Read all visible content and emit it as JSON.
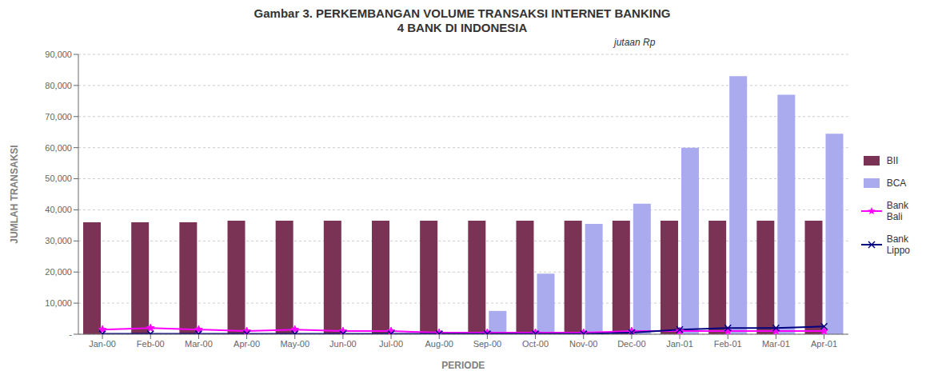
{
  "chart_data": {
    "type": "bar",
    "title": "Gambar 3. PERKEMBANGAN VOLUME TRANSAKSI INTERNET BANKING\n4 BANK DI INDONESIA",
    "subtitle": "jutaan Rp",
    "xlabel": "PERIODE",
    "ylabel": "JUMLAH TRANSAKSI",
    "categories": [
      "Jan-00",
      "Feb-00",
      "Mar-00",
      "Apr-00",
      "May-00",
      "Jun-00",
      "Jul-00",
      "Aug-00",
      "Sep-00",
      "Oct-00",
      "Nov-00",
      "Dec-00",
      "Jan-01",
      "Feb-01",
      "Mar-01",
      "Apr-01"
    ],
    "series": [
      {
        "name": "BII",
        "type": "bar",
        "color": "#7B3355",
        "values": [
          36000,
          36000,
          36000,
          36500,
          36500,
          36500,
          36500,
          36500,
          36500,
          36500,
          36500,
          36500,
          36500,
          36500,
          36500,
          36500
        ]
      },
      {
        "name": "BCA",
        "type": "bar",
        "color": "#AAAAEE",
        "values": [
          0,
          0,
          0,
          0,
          0,
          0,
          0,
          0,
          7500,
          19500,
          35500,
          42000,
          60000,
          83000,
          77000,
          64500
        ]
      },
      {
        "name": "Bank\nBali",
        "type": "line",
        "color": "#FF00FF",
        "marker": "star",
        "values": [
          1500,
          2000,
          1500,
          1000,
          1500,
          1000,
          1000,
          500,
          500,
          500,
          500,
          1000,
          1000,
          1000,
          1000,
          1000
        ]
      },
      {
        "name": "Bank\nLippo",
        "type": "line",
        "color": "#000080",
        "marker": "x",
        "values": [
          100,
          100,
          100,
          100,
          100,
          100,
          100,
          100,
          100,
          100,
          100,
          500,
          1500,
          2000,
          2000,
          2500
        ]
      }
    ],
    "ylim": [
      0,
      90000
    ],
    "yticks": [
      {
        "value": 0,
        "label": "-"
      },
      {
        "value": 10000,
        "label": "10,000"
      },
      {
        "value": 20000,
        "label": "20,000"
      },
      {
        "value": 30000,
        "label": "30,000"
      },
      {
        "value": 40000,
        "label": "40,000"
      },
      {
        "value": 50000,
        "label": "50,000"
      },
      {
        "value": 60000,
        "label": "60,000"
      },
      {
        "value": 70000,
        "label": "70,000"
      },
      {
        "value": 80000,
        "label": "80,000"
      },
      {
        "value": 90000,
        "label": "90,000"
      }
    ],
    "grid": true,
    "legend": "right"
  }
}
